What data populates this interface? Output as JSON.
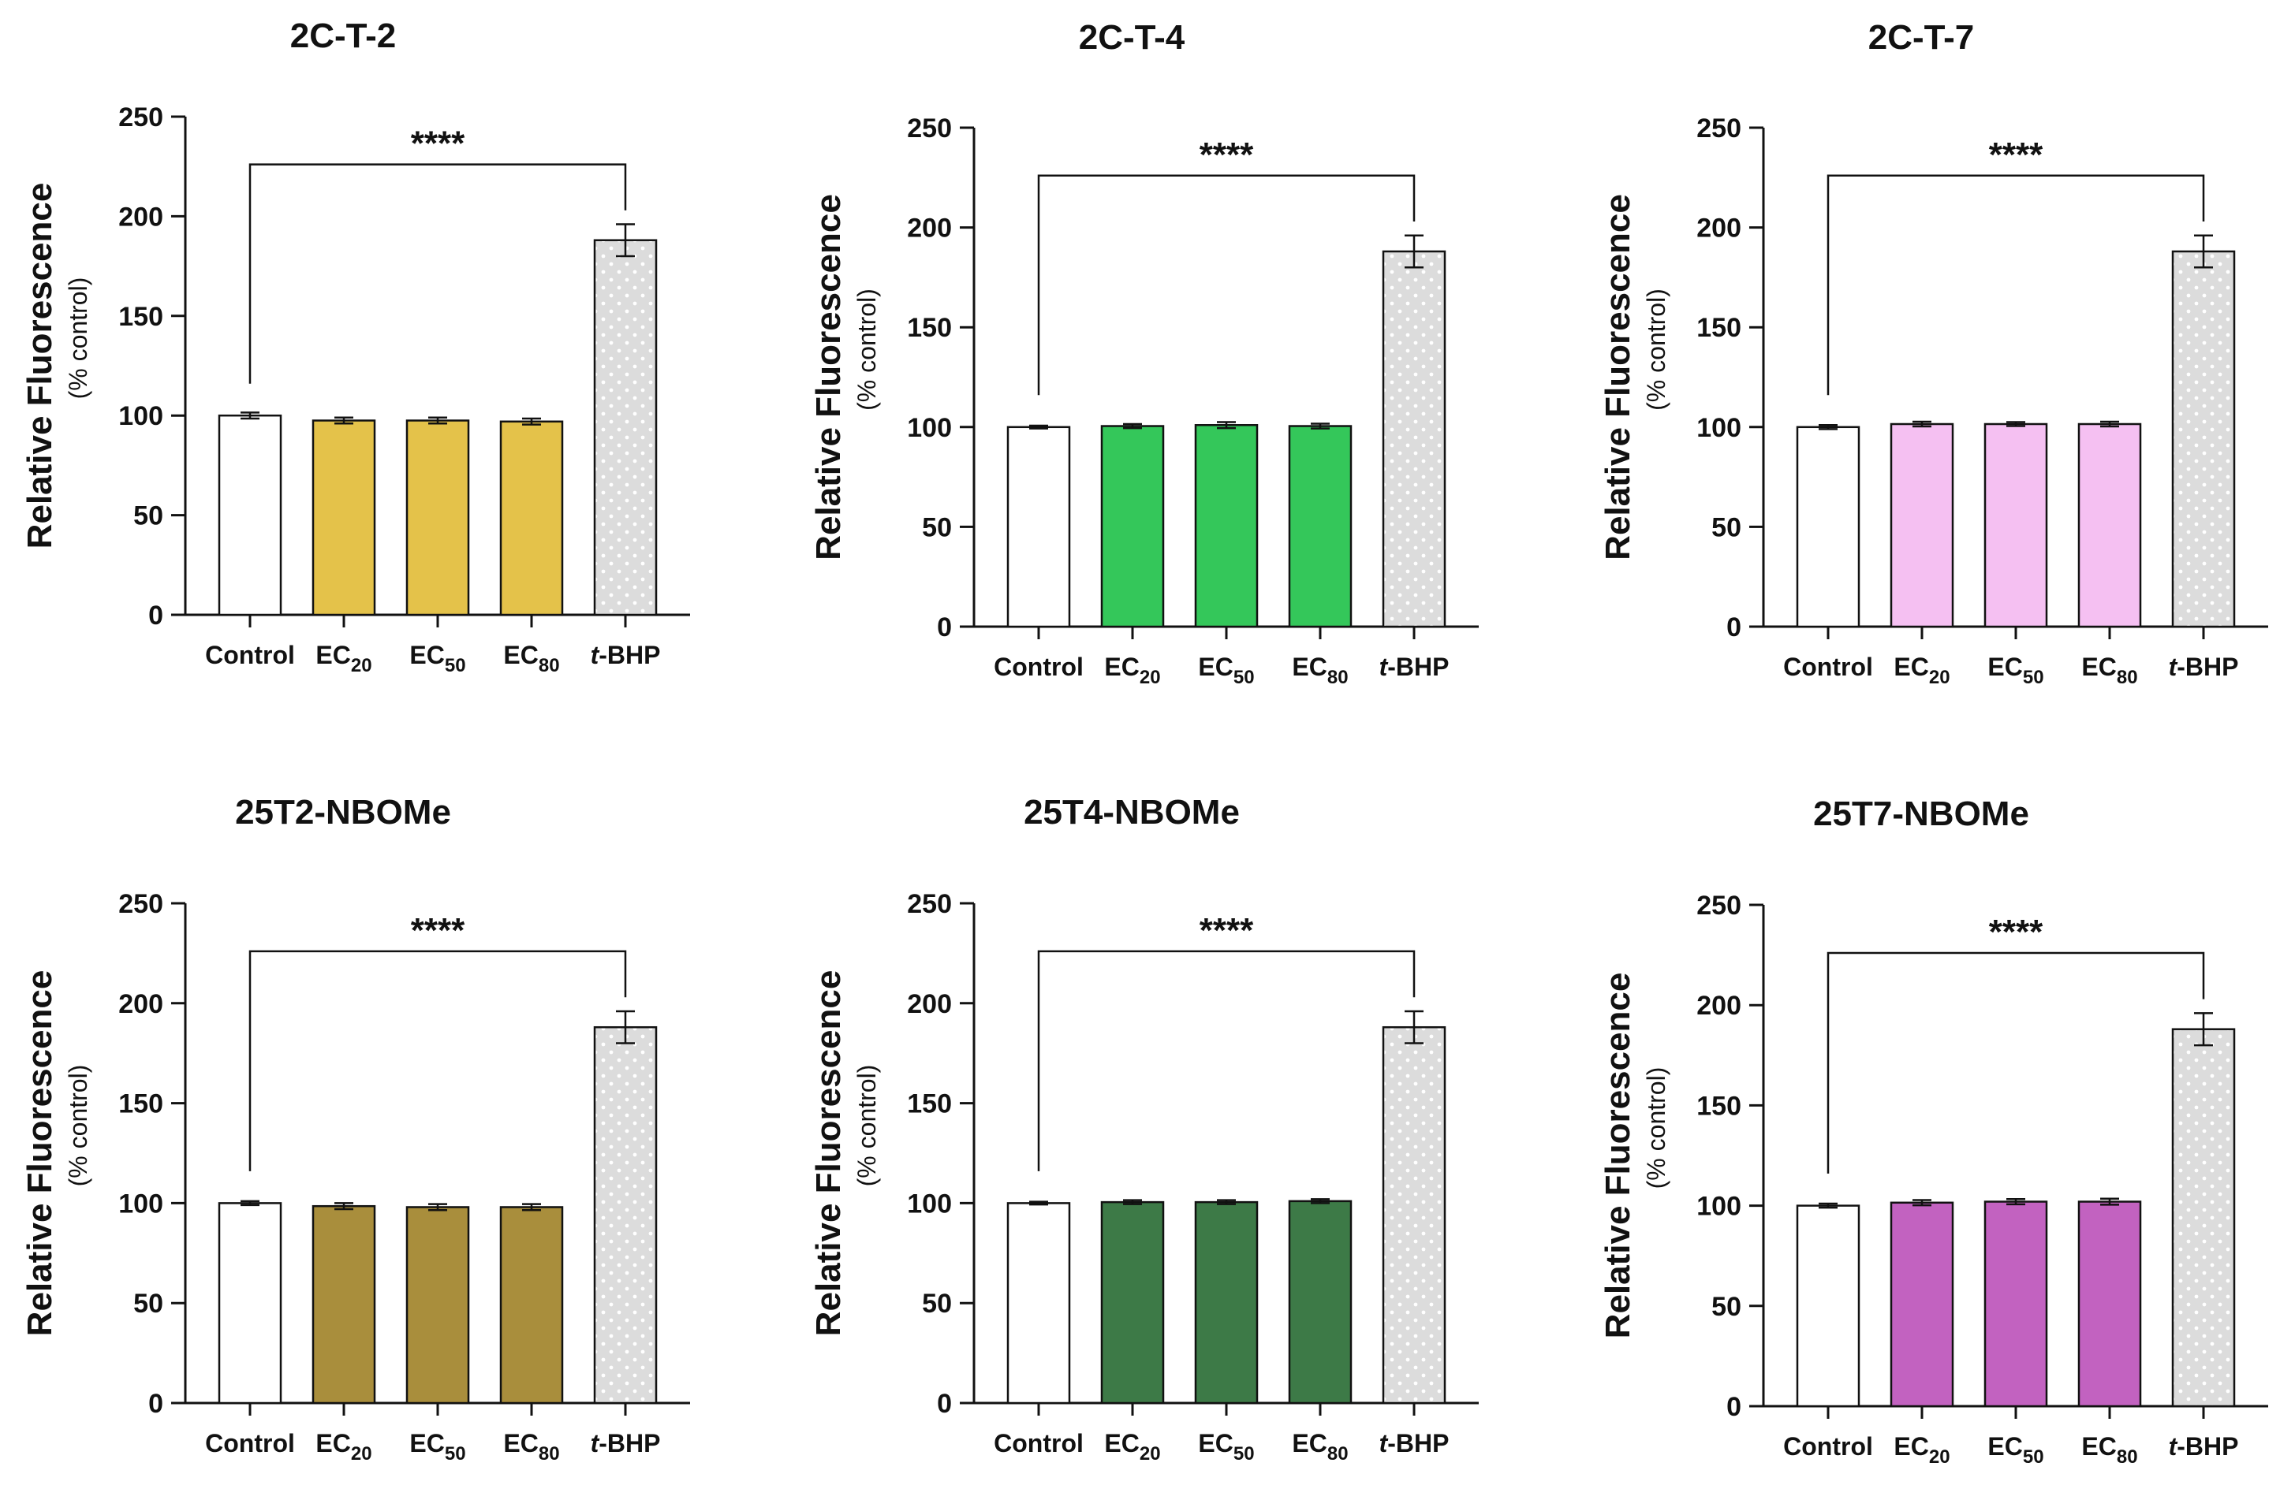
{
  "colors": {
    "axis": "#111111",
    "control": "#ffffff",
    "tbhp": "#dcdcdc",
    "tbhp_dots": "#ffffff"
  },
  "chart_data": [
    {
      "type": "bar",
      "title": "2C-T-2",
      "ylabel": "Relative Fluorescence",
      "ylabel_sub": "(% control)",
      "ylim": [
        0,
        250
      ],
      "yticks": [
        "0",
        "50",
        "100",
        "150",
        "200",
        "250"
      ],
      "categories": [
        {
          "base": "Control",
          "sub": "",
          "italic": ""
        },
        {
          "base": "EC",
          "sub": "20",
          "italic": ""
        },
        {
          "base": "EC",
          "sub": "50",
          "italic": ""
        },
        {
          "base": "EC",
          "sub": "80",
          "italic": ""
        },
        {
          "base": "-BHP",
          "sub": "",
          "italic": "t"
        }
      ],
      "values": [
        100,
        97.5,
        97.5,
        97,
        188
      ],
      "errors": [
        1.5,
        1.5,
        1.5,
        1.5,
        8
      ],
      "bar_colors": [
        "#ffffff",
        "#e4c24a",
        "#e4c24a",
        "#e4c24a",
        "#dcdcdc"
      ],
      "significance": {
        "label": "****",
        "from": 0,
        "to": 4
      }
    },
    {
      "type": "bar",
      "title": "2C-T-4",
      "ylabel": "Relative Fluorescence",
      "ylabel_sub": "(% control)",
      "ylim": [
        0,
        250
      ],
      "yticks": [
        "0",
        "50",
        "100",
        "150",
        "200",
        "250"
      ],
      "categories": [
        {
          "base": "Control",
          "sub": "",
          "italic": ""
        },
        {
          "base": "EC",
          "sub": "20",
          "italic": ""
        },
        {
          "base": "EC",
          "sub": "50",
          "italic": ""
        },
        {
          "base": "EC",
          "sub": "80",
          "italic": ""
        },
        {
          "base": "-BHP",
          "sub": "",
          "italic": "t"
        }
      ],
      "values": [
        100,
        100.5,
        101,
        100.5,
        188
      ],
      "errors": [
        0.7,
        1,
        1.5,
        1.2,
        8
      ],
      "bar_colors": [
        "#ffffff",
        "#34c75a",
        "#34c75a",
        "#34c75a",
        "#dcdcdc"
      ],
      "significance": {
        "label": "****",
        "from": 0,
        "to": 4
      }
    },
    {
      "type": "bar",
      "title": "2C-T-7",
      "ylabel": "Relative Fluorescence",
      "ylabel_sub": "(% control)",
      "ylim": [
        0,
        250
      ],
      "yticks": [
        "0",
        "50",
        "100",
        "150",
        "200",
        "250"
      ],
      "categories": [
        {
          "base": "Control",
          "sub": "",
          "italic": ""
        },
        {
          "base": "EC",
          "sub": "20",
          "italic": ""
        },
        {
          "base": "EC",
          "sub": "50",
          "italic": ""
        },
        {
          "base": "EC",
          "sub": "80",
          "italic": ""
        },
        {
          "base": "-BHP",
          "sub": "",
          "italic": "t"
        }
      ],
      "values": [
        100,
        101.5,
        101.5,
        101.5,
        188
      ],
      "errors": [
        1,
        1.2,
        1,
        1.2,
        8
      ],
      "bar_colors": [
        "#ffffff",
        "#f5c0f2",
        "#f5c0f2",
        "#f5c0f2",
        "#dcdcdc"
      ],
      "significance": {
        "label": "****",
        "from": 0,
        "to": 4
      }
    },
    {
      "type": "bar",
      "title": "25T2-NBOMe",
      "ylabel": "Relative Fluorescence",
      "ylabel_sub": "(% control)",
      "ylim": [
        0,
        250
      ],
      "yticks": [
        "0",
        "50",
        "100",
        "150",
        "200",
        "250"
      ],
      "categories": [
        {
          "base": "Control",
          "sub": "",
          "italic": ""
        },
        {
          "base": "EC",
          "sub": "20",
          "italic": ""
        },
        {
          "base": "EC",
          "sub": "50",
          "italic": ""
        },
        {
          "base": "EC",
          "sub": "80",
          "italic": ""
        },
        {
          "base": "-BHP",
          "sub": "",
          "italic": "t"
        }
      ],
      "values": [
        100,
        98.5,
        98,
        98,
        188
      ],
      "errors": [
        1,
        1.5,
        1.5,
        1.5,
        8
      ],
      "bar_colors": [
        "#ffffff",
        "#a98e3c",
        "#a98e3c",
        "#a98e3c",
        "#dcdcdc"
      ],
      "significance": {
        "label": "****",
        "from": 0,
        "to": 4
      }
    },
    {
      "type": "bar",
      "title": "25T4-NBOMe",
      "ylabel": "Relative Fluorescence",
      "ylabel_sub": "(% control)",
      "ylim": [
        0,
        250
      ],
      "yticks": [
        "0",
        "50",
        "100",
        "150",
        "200",
        "250"
      ],
      "categories": [
        {
          "base": "Control",
          "sub": "",
          "italic": ""
        },
        {
          "base": "EC",
          "sub": "20",
          "italic": ""
        },
        {
          "base": "EC",
          "sub": "50",
          "italic": ""
        },
        {
          "base": "EC",
          "sub": "80",
          "italic": ""
        },
        {
          "base": "-BHP",
          "sub": "",
          "italic": "t"
        }
      ],
      "values": [
        100,
        100.5,
        100.5,
        101,
        188
      ],
      "errors": [
        0.7,
        1,
        1,
        1,
        8
      ],
      "bar_colors": [
        "#ffffff",
        "#3d7a47",
        "#3d7a47",
        "#3d7a47",
        "#dcdcdc"
      ],
      "significance": {
        "label": "****",
        "from": 0,
        "to": 4
      }
    },
    {
      "type": "bar",
      "title": "25T7-NBOMe",
      "ylabel": "Relative Fluorescence",
      "ylabel_sub": "(% control)",
      "ylim": [
        0,
        250
      ],
      "yticks": [
        "0",
        "50",
        "100",
        "150",
        "200",
        "250"
      ],
      "categories": [
        {
          "base": "Control",
          "sub": "",
          "italic": ""
        },
        {
          "base": "EC",
          "sub": "20",
          "italic": ""
        },
        {
          "base": "EC",
          "sub": "50",
          "italic": ""
        },
        {
          "base": "EC",
          "sub": "80",
          "italic": ""
        },
        {
          "base": "-BHP",
          "sub": "",
          "italic": "t"
        }
      ],
      "values": [
        100,
        101.5,
        102,
        102,
        188
      ],
      "errors": [
        1,
        1.3,
        1.3,
        1.5,
        8
      ],
      "bar_colors": [
        "#ffffff",
        "#c262c0",
        "#c262c0",
        "#c262c0",
        "#dcdcdc"
      ],
      "significance": {
        "label": "****",
        "from": 0,
        "to": 4
      }
    }
  ]
}
